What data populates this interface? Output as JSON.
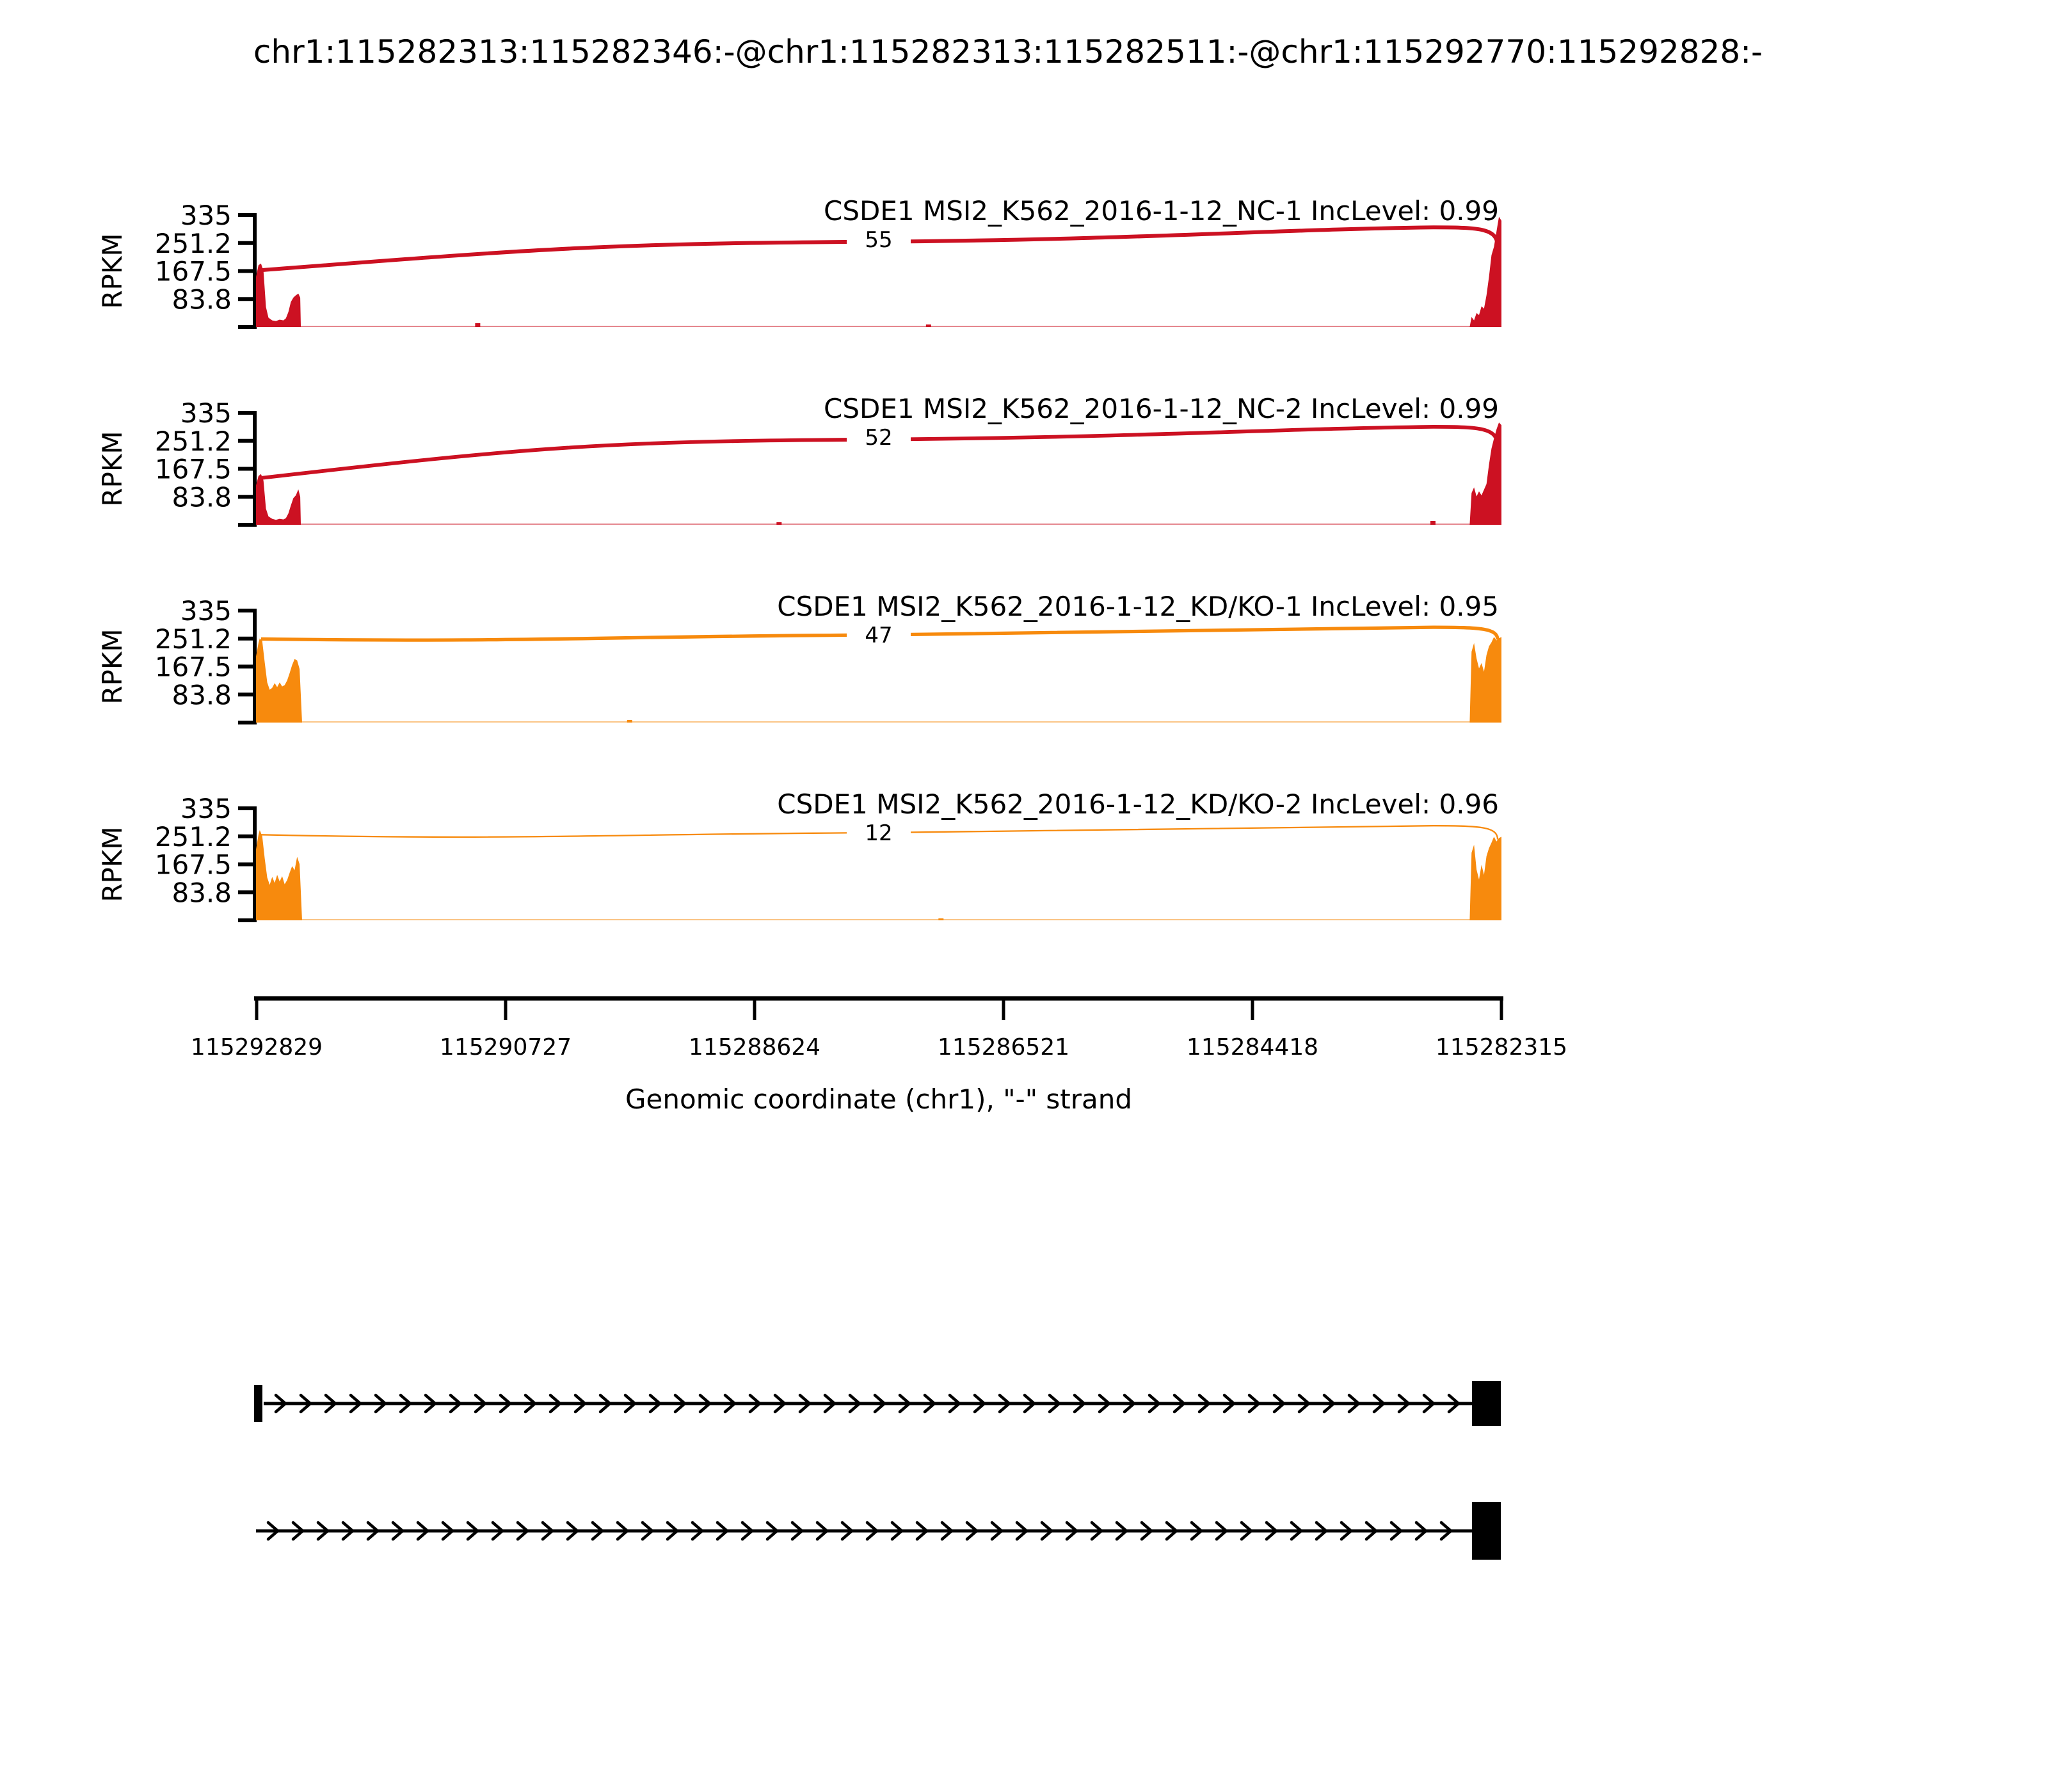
{
  "title": "chr1:115282313:115282346:-@chr1:115282313:115282511:-@chr1:115292770:115292828:-",
  "y_axis": {
    "label": "RPKM",
    "tick_labels": [
      "335",
      "251.2",
      "167.5",
      "83.8"
    ],
    "max": 335
  },
  "x_axis": {
    "label": "Genomic coordinate (chr1), \"-\" strand",
    "tick_labels": [
      "115292829",
      "115290727",
      "115288624",
      "115286521",
      "115284418",
      "115282315"
    ]
  },
  "chart_data": {
    "type": "area",
    "subtype": "sashimi-plot",
    "title": "chr1:115282313:115282346:-@chr1:115282313:115282511:-@chr1:115292770:115292828:-",
    "xlabel": "Genomic coordinate (chr1), \"-\" strand",
    "ylabel": "RPKM",
    "y_ticks": [
      335,
      251.2,
      167.5,
      83.8
    ],
    "ylim": [
      0,
      335
    ],
    "x_tick_labels": [
      "115292829",
      "115290727",
      "115288624",
      "115286521",
      "115284418",
      "115282315"
    ],
    "group_colors": {
      "group1": "#CC1122",
      "group2": "#F78A0D"
    },
    "tracks": [
      {
        "label": "CSDE1 MSI2_K562_2016-1-12_NC-1 IncLevel: 0.99",
        "sample": "MSI2_K562_2016-1-12_NC-1",
        "inc_level": 0.99,
        "color": "#CC1122",
        "junction_reads": 55,
        "arc": {
          "start_rpkm": 170,
          "mid_rpkm": 255,
          "flat_rpkm": 298,
          "end_rpkm": 240
        },
        "coverage_left": [
          [
            0,
            150
          ],
          [
            0.002,
            185
          ],
          [
            0.004,
            190
          ],
          [
            0.006,
            168
          ],
          [
            0.008,
            60
          ],
          [
            0.01,
            28
          ],
          [
            0.013,
            20
          ],
          [
            0.016,
            18
          ],
          [
            0.019,
            22
          ],
          [
            0.022,
            20
          ],
          [
            0.024,
            26
          ],
          [
            0.026,
            45
          ],
          [
            0.028,
            75
          ],
          [
            0.03,
            88
          ],
          [
            0.032,
            95
          ],
          [
            0.034,
            100
          ],
          [
            0.0355,
            88
          ],
          [
            0.036,
            0
          ]
        ],
        "coverage_right": [
          [
            0.9745,
            0
          ],
          [
            0.976,
            30
          ],
          [
            0.978,
            20
          ],
          [
            0.98,
            42
          ],
          [
            0.982,
            36
          ],
          [
            0.984,
            62
          ],
          [
            0.986,
            55
          ],
          [
            0.988,
            95
          ],
          [
            0.99,
            150
          ],
          [
            0.992,
            215
          ],
          [
            0.994,
            240
          ],
          [
            0.996,
            285
          ],
          [
            0.998,
            330
          ],
          [
            1,
            318
          ],
          [
            1,
            0
          ]
        ],
        "intron_bumps": [
          [
            0.178,
            6
          ],
          [
            0.54,
            4
          ]
        ]
      },
      {
        "label": "CSDE1 MSI2_K562_2016-1-12_NC-2 IncLevel: 0.99",
        "sample": "MSI2_K562_2016-1-12_NC-2",
        "inc_level": 0.99,
        "color": "#CC1122",
        "junction_reads": 52,
        "arc": {
          "start_rpkm": 140,
          "mid_rpkm": 255,
          "flat_rpkm": 293,
          "end_rpkm": 235
        },
        "coverage_left": [
          [
            0,
            118
          ],
          [
            0.002,
            146
          ],
          [
            0.004,
            152
          ],
          [
            0.006,
            132
          ],
          [
            0.008,
            48
          ],
          [
            0.01,
            25
          ],
          [
            0.013,
            18
          ],
          [
            0.016,
            15
          ],
          [
            0.019,
            18
          ],
          [
            0.022,
            16
          ],
          [
            0.024,
            20
          ],
          [
            0.026,
            34
          ],
          [
            0.028,
            58
          ],
          [
            0.03,
            80
          ],
          [
            0.032,
            88
          ],
          [
            0.034,
            106
          ],
          [
            0.0355,
            84
          ],
          [
            0.036,
            0
          ]
        ],
        "coverage_right": [
          [
            0.9745,
            0
          ],
          [
            0.976,
            95
          ],
          [
            0.978,
            112
          ],
          [
            0.98,
            85
          ],
          [
            0.982,
            100
          ],
          [
            0.984,
            88
          ],
          [
            0.986,
            105
          ],
          [
            0.988,
            122
          ],
          [
            0.99,
            180
          ],
          [
            0.992,
            228
          ],
          [
            0.994,
            258
          ],
          [
            0.996,
            285
          ],
          [
            0.998,
            306
          ],
          [
            1,
            298
          ],
          [
            1,
            0
          ]
        ],
        "intron_bumps": [
          [
            0.42,
            4
          ],
          [
            0.945,
            6
          ]
        ]
      },
      {
        "label": "CSDE1 MSI2_K562_2016-1-12_KD/KO-1 IncLevel: 0.95",
        "sample": "MSI2_K562_2016-1-12_KD/KO-1",
        "inc_level": 0.95,
        "color": "#F78A0D",
        "junction_reads": 47,
        "arc": {
          "start_rpkm": 250,
          "mid_rpkm": 262,
          "flat_rpkm": 285,
          "end_rpkm": 248
        },
        "coverage_left": [
          [
            0,
            198
          ],
          [
            0.002,
            238
          ],
          [
            0.003,
            252
          ],
          [
            0.005,
            244
          ],
          [
            0.007,
            180
          ],
          [
            0.009,
            120
          ],
          [
            0.011,
            98
          ],
          [
            0.013,
            104
          ],
          [
            0.015,
            118
          ],
          [
            0.017,
            106
          ],
          [
            0.019,
            120
          ],
          [
            0.021,
            108
          ],
          [
            0.023,
            112
          ],
          [
            0.025,
            126
          ],
          [
            0.027,
            148
          ],
          [
            0.029,
            172
          ],
          [
            0.031,
            190
          ],
          [
            0.033,
            186
          ],
          [
            0.035,
            160
          ],
          [
            0.037,
            0
          ]
        ],
        "coverage_right": [
          [
            0.9745,
            0
          ],
          [
            0.976,
            212
          ],
          [
            0.978,
            238
          ],
          [
            0.98,
            192
          ],
          [
            0.982,
            162
          ],
          [
            0.984,
            178
          ],
          [
            0.986,
            152
          ],
          [
            0.988,
            202
          ],
          [
            0.99,
            228
          ],
          [
            0.992,
            240
          ],
          [
            0.994,
            256
          ],
          [
            0.996,
            246
          ],
          [
            0.998,
            252
          ],
          [
            1,
            256
          ],
          [
            1,
            0
          ]
        ],
        "intron_bumps": [
          [
            0.3,
            4
          ]
        ]
      },
      {
        "label": "CSDE1 MSI2_K562_2016-1-12_KD/KO-2 IncLevel: 0.96",
        "sample": "MSI2_K562_2016-1-12_KD/KO-2",
        "inc_level": 0.96,
        "color": "#F78A0D",
        "junction_reads": 12,
        "arc": {
          "start_rpkm": 256,
          "mid_rpkm": 262,
          "flat_rpkm": 283,
          "end_rpkm": 242
        },
        "coverage_left": [
          [
            0,
            212
          ],
          [
            0.002,
            256
          ],
          [
            0.003,
            270
          ],
          [
            0.005,
            252
          ],
          [
            0.007,
            185
          ],
          [
            0.009,
            128
          ],
          [
            0.011,
            106
          ],
          [
            0.013,
            130
          ],
          [
            0.015,
            112
          ],
          [
            0.017,
            136
          ],
          [
            0.019,
            116
          ],
          [
            0.021,
            132
          ],
          [
            0.023,
            108
          ],
          [
            0.025,
            120
          ],
          [
            0.027,
            142
          ],
          [
            0.029,
            162
          ],
          [
            0.031,
            150
          ],
          [
            0.033,
            190
          ],
          [
            0.035,
            168
          ],
          [
            0.037,
            0
          ]
        ],
        "coverage_right": [
          [
            0.9745,
            0
          ],
          [
            0.976,
            202
          ],
          [
            0.978,
            226
          ],
          [
            0.98,
            152
          ],
          [
            0.982,
            122
          ],
          [
            0.984,
            166
          ],
          [
            0.986,
            136
          ],
          [
            0.988,
            192
          ],
          [
            0.99,
            216
          ],
          [
            0.992,
            232
          ],
          [
            0.994,
            250
          ],
          [
            0.996,
            236
          ],
          [
            0.998,
            246
          ],
          [
            1,
            250
          ],
          [
            1,
            0
          ]
        ],
        "intron_bumps": [
          [
            0.55,
            3
          ]
        ]
      }
    ],
    "gene_model": {
      "arrow_direction": "right",
      "transcripts": [
        {
          "start_marker": true,
          "end_exon": true
        },
        {
          "start_marker": false,
          "end_exon": true
        }
      ]
    }
  }
}
